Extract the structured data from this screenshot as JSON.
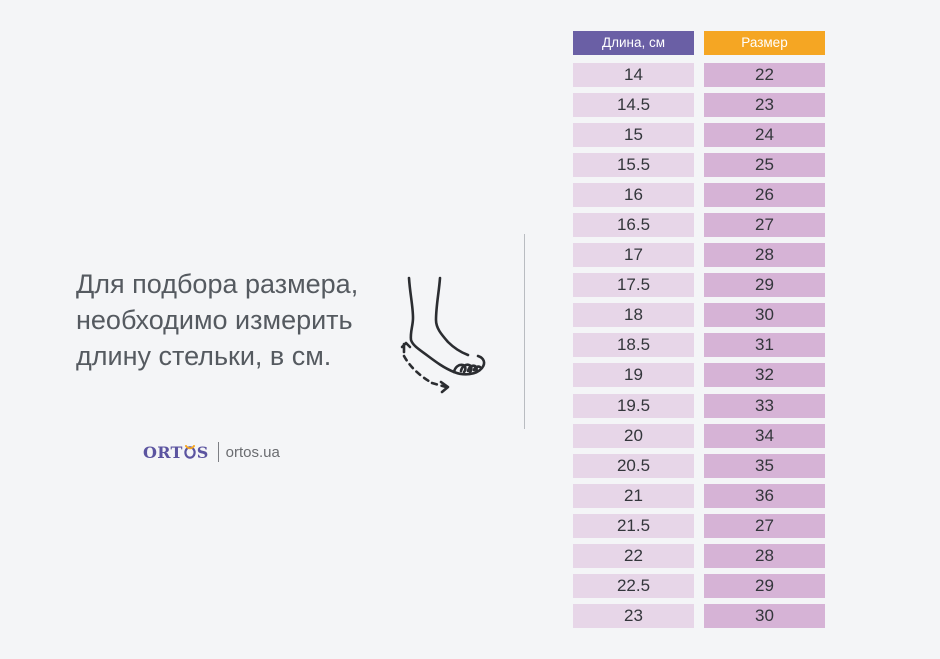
{
  "instruction_lines": [
    "Для подбора размера,",
    "необходимо измерить",
    "длину стельки, в см."
  ],
  "brand": {
    "logo_text_left": "ORT",
    "logo_text_right": "S",
    "logo_icon": "ortos-logo-o-mark",
    "site": "ortos.ua"
  },
  "table": {
    "headers": {
      "length": "Длина, см",
      "size": "Размер"
    },
    "colors": {
      "length_header": "#6a5fa5",
      "size_header": "#f5a623",
      "length_cell": "#e7d6e8",
      "size_cell": "#d6b3d6"
    },
    "rows": [
      {
        "length": "14",
        "size": "22"
      },
      {
        "length": "14.5",
        "size": "23"
      },
      {
        "length": "15",
        "size": "24"
      },
      {
        "length": "15.5",
        "size": "25"
      },
      {
        "length": "16",
        "size": "26"
      },
      {
        "length": "16.5",
        "size": "27"
      },
      {
        "length": "17",
        "size": "28"
      },
      {
        "length": "17.5",
        "size": "29"
      },
      {
        "length": "18",
        "size": "30"
      },
      {
        "length": "18.5",
        "size": "31"
      },
      {
        "length": "19",
        "size": "32"
      },
      {
        "length": "19.5",
        "size": "33"
      },
      {
        "length": "20",
        "size": "34"
      },
      {
        "length": "20.5",
        "size": "35"
      },
      {
        "length": "21",
        "size": "36"
      },
      {
        "length": "21.5",
        "size": "27"
      },
      {
        "length": "22",
        "size": "28"
      },
      {
        "length": "22.5",
        "size": "29"
      },
      {
        "length": "23",
        "size": "30"
      }
    ]
  },
  "icons": {
    "foot": "foot-measure-icon"
  }
}
